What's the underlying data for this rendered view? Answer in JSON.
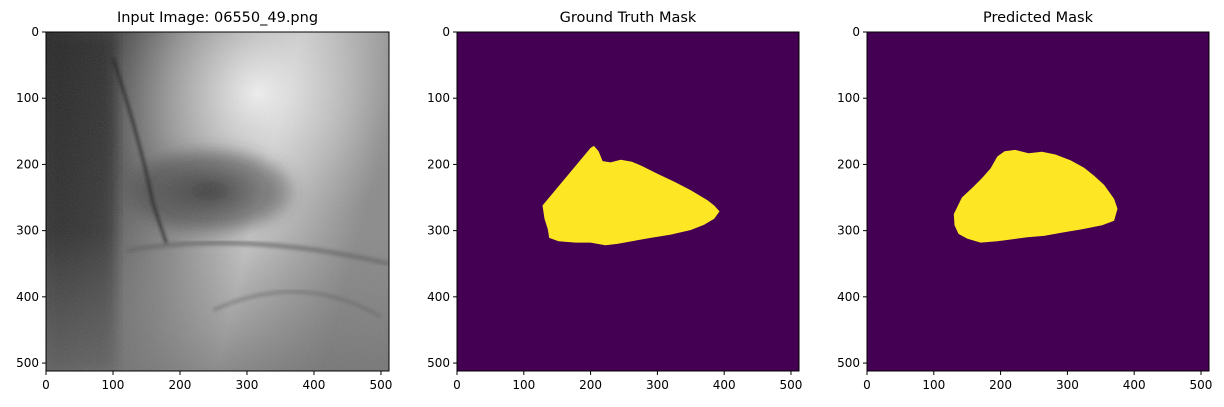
{
  "figure": {
    "panels": [
      {
        "id": "input",
        "title": "Input Image: 06550_49.png",
        "image_kind": "grayscale angiography x-ray",
        "x_ticks": [
          0,
          100,
          200,
          300,
          400,
          500
        ],
        "y_ticks": [
          0,
          100,
          200,
          300,
          400,
          500
        ],
        "extent": [
          0,
          512
        ]
      },
      {
        "id": "ground-truth",
        "title": "Ground Truth Mask",
        "background_color": "#440154",
        "foreground_color": "#fde725",
        "x_ticks": [
          0,
          100,
          200,
          300,
          400,
          500
        ],
        "y_ticks": [
          0,
          100,
          200,
          300,
          400,
          500
        ],
        "extent": [
          0,
          512
        ],
        "mask_outline": [
          [
            128,
            262
          ],
          [
            200,
            175
          ],
          [
            205,
            172
          ],
          [
            212,
            180
          ],
          [
            218,
            195
          ],
          [
            230,
            197
          ],
          [
            245,
            193
          ],
          [
            262,
            196
          ],
          [
            276,
            202
          ],
          [
            300,
            214
          ],
          [
            325,
            226
          ],
          [
            350,
            239
          ],
          [
            375,
            254
          ],
          [
            385,
            262
          ],
          [
            393,
            271
          ],
          [
            385,
            282
          ],
          [
            370,
            291
          ],
          [
            350,
            299
          ],
          [
            320,
            306
          ],
          [
            290,
            311
          ],
          [
            262,
            316
          ],
          [
            240,
            320
          ],
          [
            222,
            322
          ],
          [
            200,
            318
          ],
          [
            178,
            318
          ],
          [
            152,
            316
          ],
          [
            138,
            311
          ],
          [
            136,
            298
          ],
          [
            131,
            282
          ]
        ]
      },
      {
        "id": "predicted",
        "title": "Predicted Mask",
        "background_color": "#440154",
        "foreground_color": "#fde725",
        "x_ticks": [
          0,
          100,
          200,
          300,
          400,
          500
        ],
        "y_ticks": [
          0,
          100,
          200,
          300,
          400,
          500
        ],
        "extent": [
          0,
          512
        ],
        "mask_outline": [
          [
            130,
            275
          ],
          [
            142,
            250
          ],
          [
            158,
            235
          ],
          [
            172,
            221
          ],
          [
            185,
            206
          ],
          [
            195,
            188
          ],
          [
            206,
            180
          ],
          [
            222,
            178
          ],
          [
            242,
            183
          ],
          [
            262,
            181
          ],
          [
            282,
            185
          ],
          [
            305,
            194
          ],
          [
            325,
            205
          ],
          [
            340,
            217
          ],
          [
            355,
            231
          ],
          [
            370,
            252
          ],
          [
            375,
            267
          ],
          [
            370,
            285
          ],
          [
            352,
            292
          ],
          [
            322,
            298
          ],
          [
            292,
            303
          ],
          [
            265,
            308
          ],
          [
            240,
            310
          ],
          [
            218,
            313
          ],
          [
            195,
            316
          ],
          [
            170,
            318
          ],
          [
            150,
            312
          ],
          [
            137,
            305
          ],
          [
            131,
            292
          ]
        ]
      }
    ]
  }
}
